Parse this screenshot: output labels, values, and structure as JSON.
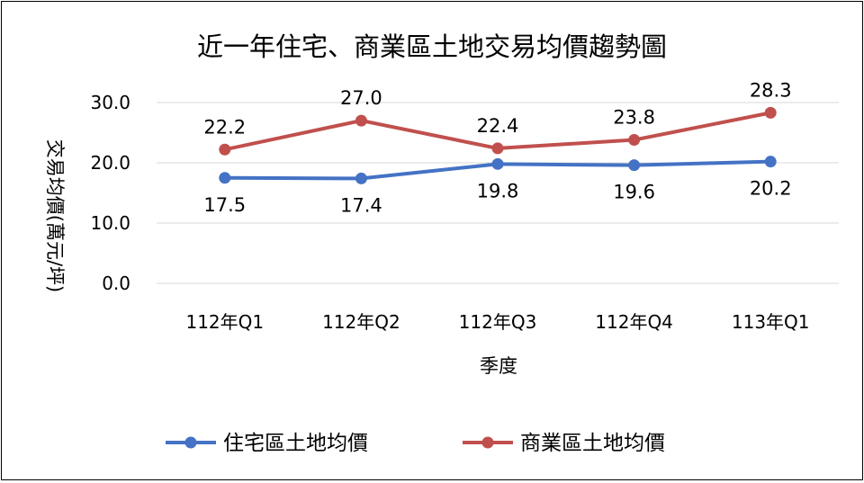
{
  "chart_data": {
    "type": "line",
    "title": "近一年住宅、商業區土地交易均價趨勢圖",
    "xlabel": "季度",
    "ylabel": "交易均價(萬元/坪)",
    "categories": [
      "112年Q1",
      "112年Q2",
      "112年Q3",
      "112年Q4",
      "113年Q1"
    ],
    "ylim": [
      0,
      30
    ],
    "yticks": [
      "0.0",
      "10.0",
      "20.0",
      "30.0"
    ],
    "grid": true,
    "legend": "bottom",
    "series": [
      {
        "name": "住宅區土地均價",
        "color": "#4472C4",
        "values": [
          17.5,
          17.4,
          19.8,
          19.6,
          20.2
        ],
        "labels": [
          "17.5",
          "17.4",
          "19.8",
          "19.6",
          "20.2"
        ],
        "label_pos": "below"
      },
      {
        "name": "商業區土地均價",
        "color": "#C0504D",
        "values": [
          22.2,
          27.0,
          22.4,
          23.8,
          28.3
        ],
        "labels": [
          "22.2",
          "27.0",
          "22.4",
          "23.8",
          "28.3"
        ],
        "label_pos": "above"
      }
    ]
  }
}
